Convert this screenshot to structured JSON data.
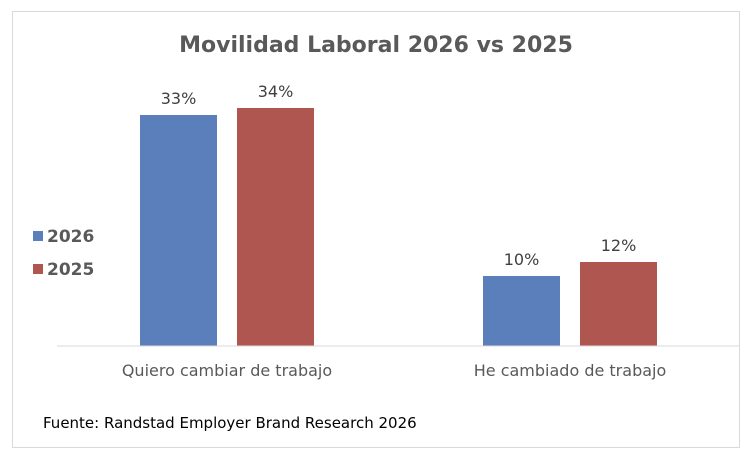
{
  "chart_data": {
    "type": "bar",
    "title": "Movilidad Laboral 2026 vs 2025",
    "categories": [
      "Quiero cambiar de trabajo",
      "He cambiado de trabajo"
    ],
    "series": [
      {
        "name": "2026",
        "values": [
          33,
          10
        ],
        "labels": [
          "33%",
          "10%"
        ],
        "color": "#5b7fbb"
      },
      {
        "name": "2025",
        "values": [
          34,
          12
        ],
        "labels": [
          "34%",
          "12%"
        ],
        "color": "#b05650"
      }
    ],
    "ylim": [
      0,
      40
    ],
    "grid": false,
    "legend_position": "left"
  },
  "footnote": "Fuente: Randstad Employer Brand Research 2026"
}
